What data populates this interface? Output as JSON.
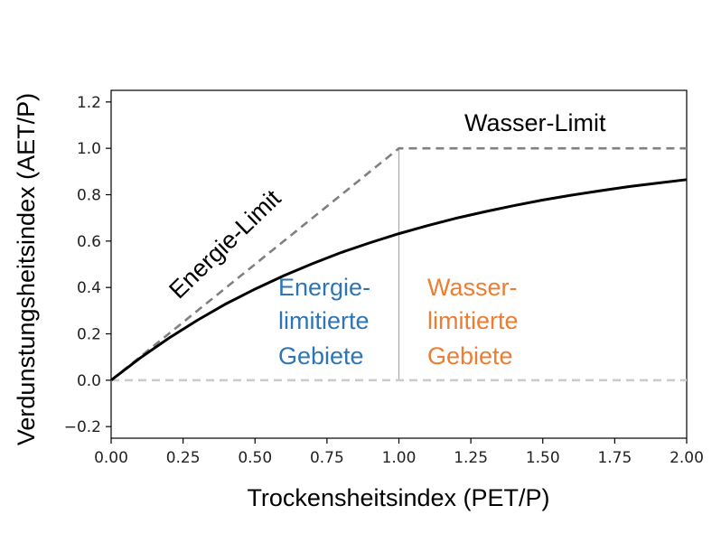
{
  "chart_data": {
    "type": "line",
    "xlabel": "Trockensheitsindex (PET/P)",
    "ylabel": "Verdunstungsheitsindex (AET/P)",
    "xlim": [
      0,
      2
    ],
    "ylim": [
      -0.25,
      1.25
    ],
    "xticks": [
      "0.00",
      "0.25",
      "0.50",
      "0.75",
      "1.00",
      "1.25",
      "1.50",
      "1.75",
      "2.00"
    ],
    "yticks": [
      "−0.2",
      "0.0",
      "0.2",
      "0.4",
      "0.6",
      "0.8",
      "1.0",
      "1.2"
    ],
    "grid": false,
    "series": [
      {
        "style": "solid",
        "color": "#000000",
        "x": [
          0,
          0.1,
          0.2,
          0.3,
          0.4,
          0.5,
          0.6,
          0.7,
          0.8,
          0.9,
          1.0,
          1.1,
          1.2,
          1.3,
          1.4,
          1.5,
          1.6,
          1.7,
          1.8,
          1.9,
          2.0
        ],
        "y": [
          0,
          0.095,
          0.181,
          0.259,
          0.33,
          0.393,
          0.451,
          0.503,
          0.551,
          0.593,
          0.632,
          0.667,
          0.699,
          0.727,
          0.753,
          0.777,
          0.798,
          0.817,
          0.835,
          0.85,
          0.865
        ]
      },
      {
        "style": "dashed",
        "color": "#808080",
        "x": [
          0,
          1,
          2
        ],
        "y": [
          0,
          1,
          1
        ]
      },
      {
        "style": "dashed",
        "color": "#cccccc",
        "x": [
          0,
          2
        ],
        "y": [
          0,
          0
        ]
      }
    ],
    "reference_lines": [
      {
        "x": 1.0,
        "color": "#aaaaaa"
      }
    ],
    "annotations": [
      {
        "text": "Wasser-Limit",
        "color": "#000000"
      },
      {
        "text": "Energie-Limit",
        "color": "#000000"
      },
      {
        "lines": [
          "Energie-",
          "limitierte",
          "Gebiete"
        ],
        "color": "#2e75b6"
      },
      {
        "lines": [
          "Wasser-",
          "limitierte",
          "Gebiete"
        ],
        "color": "#ed7d31"
      }
    ]
  }
}
